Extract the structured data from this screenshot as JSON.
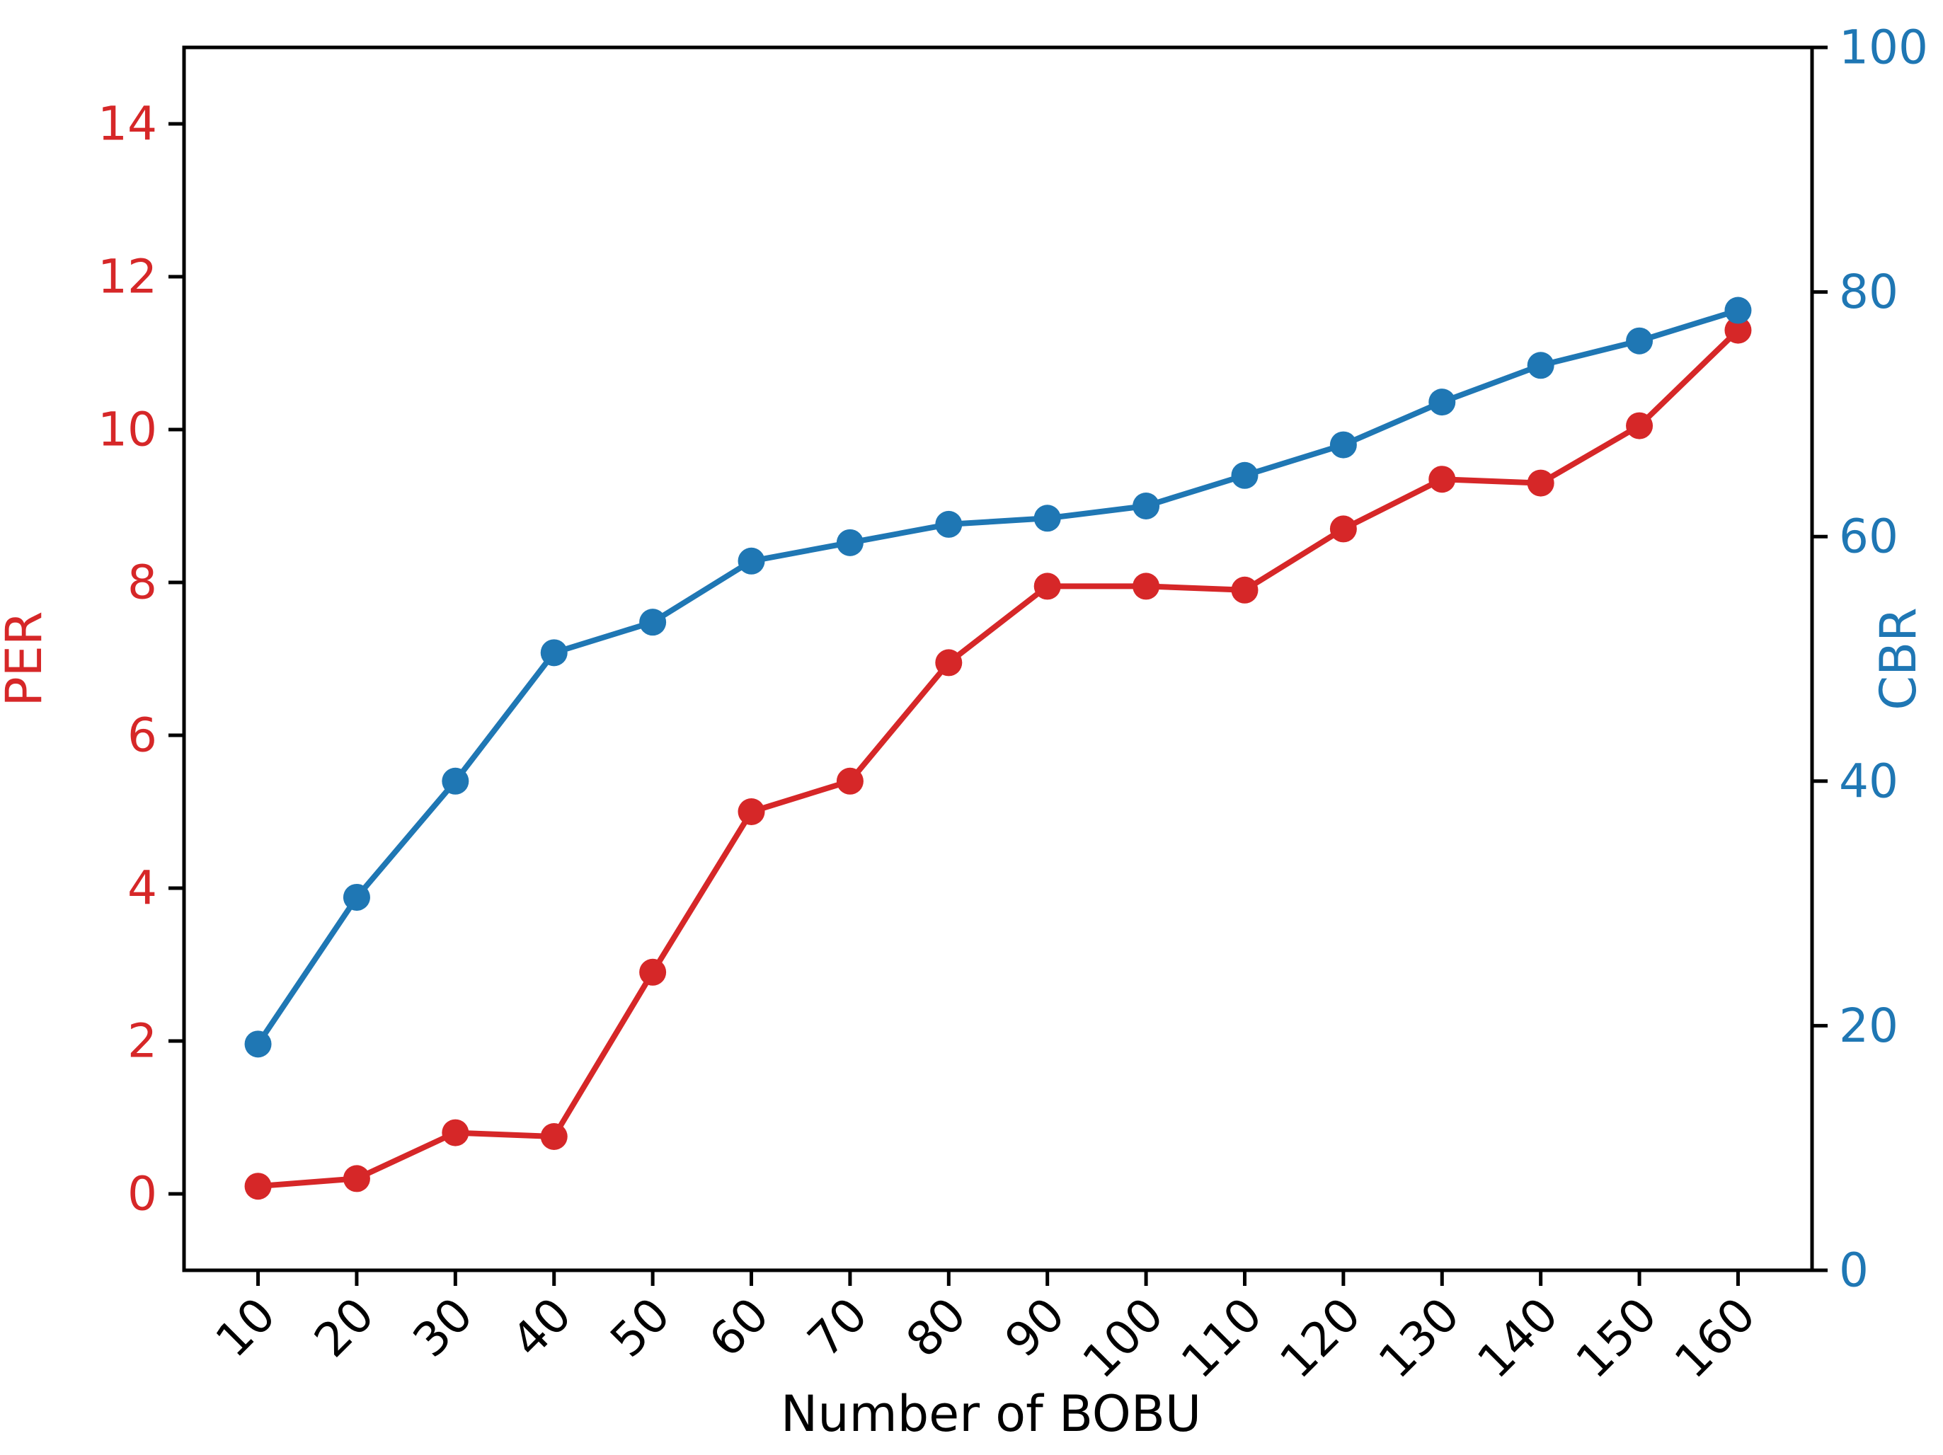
{
  "chart_data": {
    "type": "line",
    "title": "",
    "xlabel": "Number of BOBU",
    "grid": false,
    "legend": "none",
    "x": [
      10,
      20,
      30,
      40,
      50,
      60,
      70,
      80,
      90,
      100,
      110,
      120,
      130,
      140,
      150,
      160
    ],
    "x_axis": {
      "ticks": [
        10,
        20,
        30,
        40,
        50,
        60,
        70,
        80,
        90,
        100,
        110,
        120,
        130,
        140,
        150,
        160
      ],
      "range": [
        2.5,
        167.5
      ],
      "tick_rotation_deg": -45,
      "tick_color": "#000000"
    },
    "left_axis": {
      "label": "PER",
      "color": "#d62728",
      "ticks": [
        0,
        2,
        4,
        6,
        8,
        10,
        12,
        14
      ],
      "range": [
        -1,
        15
      ]
    },
    "right_axis": {
      "label": "CBR",
      "color": "#1f77b4",
      "ticks": [
        0,
        20,
        40,
        60,
        80,
        100
      ],
      "range": [
        0,
        100
      ]
    },
    "series": [
      {
        "name": "PER",
        "axis": "left",
        "color": "#d62728",
        "marker": "circle",
        "values": [
          0.1,
          0.2,
          0.8,
          0.75,
          2.9,
          5.0,
          5.4,
          6.95,
          7.95,
          7.95,
          7.9,
          8.7,
          9.35,
          9.3,
          10.05,
          11.3
        ]
      },
      {
        "name": "CBR",
        "axis": "right",
        "color": "#1f77b4",
        "marker": "circle",
        "values": [
          18.5,
          30.5,
          40,
          50.5,
          53,
          58,
          59.5,
          61,
          61.5,
          62.5,
          65,
          67.5,
          71,
          74,
          76,
          78.5
        ]
      }
    ],
    "style": {
      "background": "#ffffff",
      "spine_color": "#000000",
      "line_width": 8,
      "marker_radius": 19,
      "spine_width": 5,
      "tick_length": 22,
      "tick_width": 5
    }
  }
}
